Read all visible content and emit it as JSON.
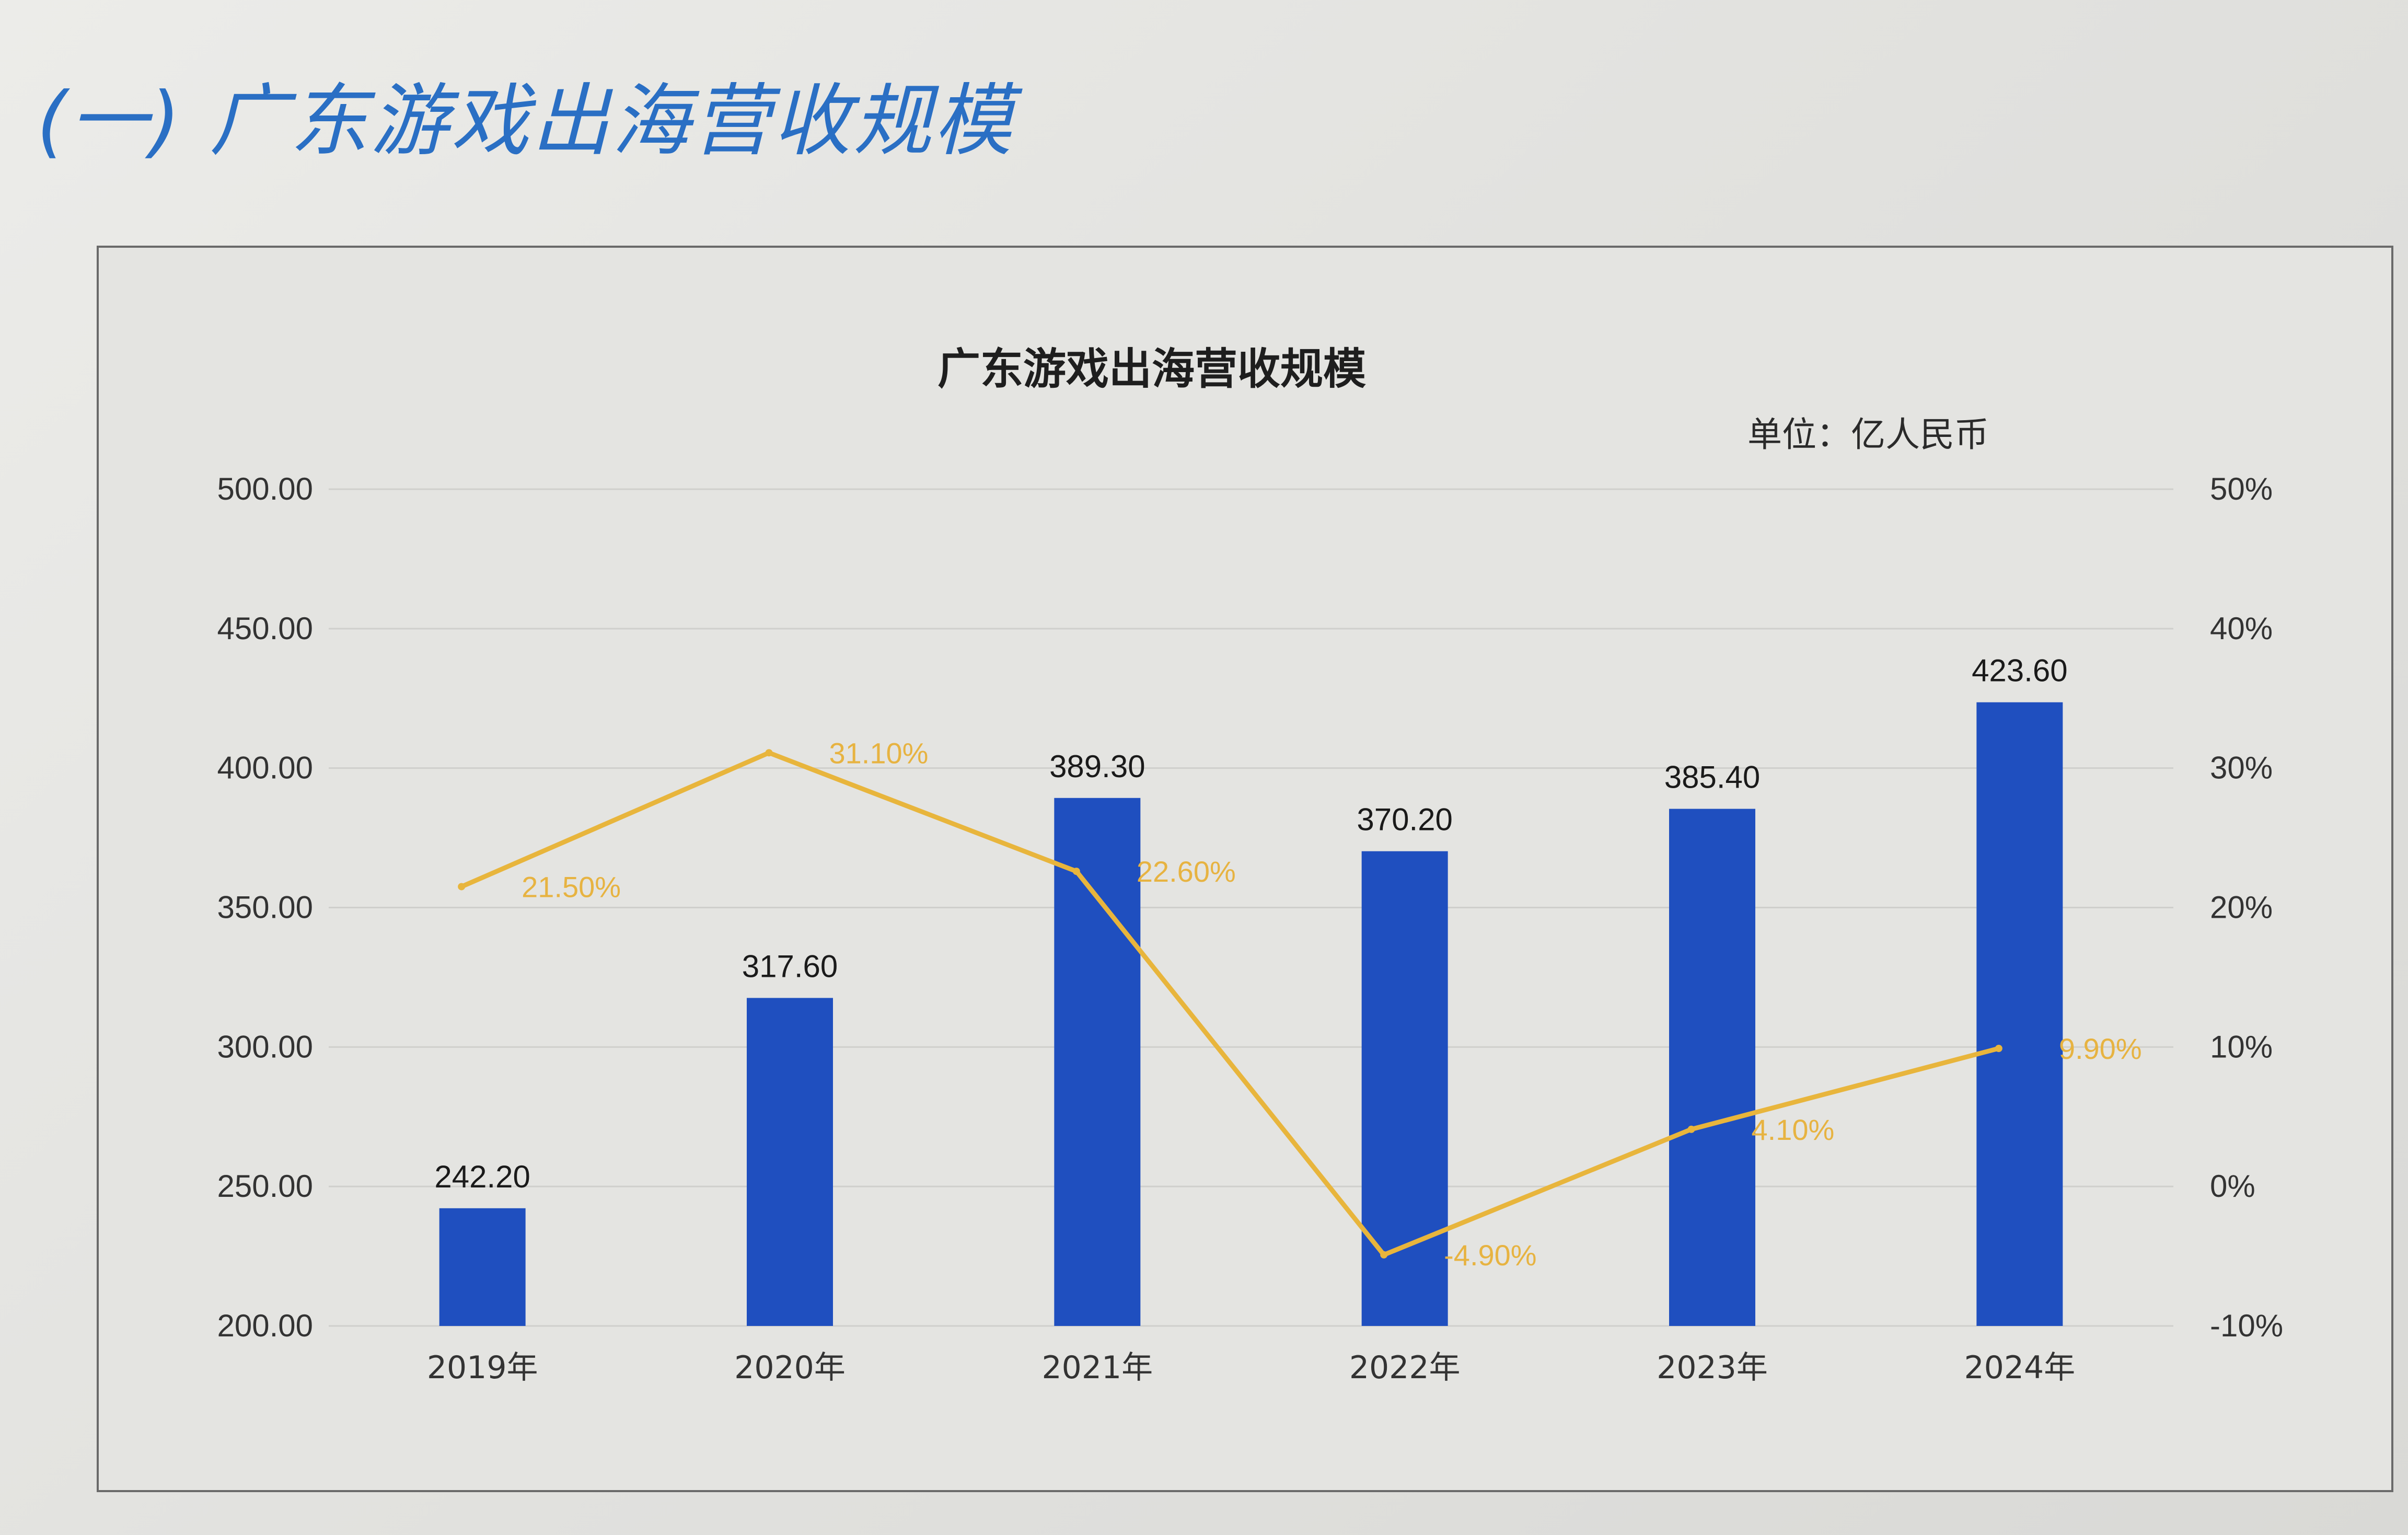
{
  "section_heading": "(一) 广东游戏出海营收规模",
  "unit_label": "单位：亿人民币",
  "colors": {
    "heading": "#2a6fc4",
    "bar": "#1f4fbf",
    "line": "#e8b53c",
    "grid": "#cfcfcc"
  },
  "chart_data": {
    "type": "bar",
    "title": "广东游戏出海营收规模",
    "categories": [
      "2019年",
      "2020年",
      "2021年",
      "2022年",
      "2023年",
      "2024年"
    ],
    "series": [
      {
        "values": [
          242.2,
          317.6,
          389.3,
          370.2,
          385.4,
          423.6
        ],
        "labels": [
          "242.20",
          "317.60",
          "389.30",
          "370.20",
          "385.40",
          "423.60"
        ],
        "axis": "left",
        "render": "bar"
      },
      {
        "values": [
          21.5,
          31.1,
          22.6,
          -4.9,
          4.1,
          9.9
        ],
        "labels": [
          "21.50%",
          "31.10%",
          "22.60%",
          "-4.90%",
          "4.10%",
          "9.90%"
        ],
        "axis": "right",
        "render": "line"
      }
    ],
    "ylim": [
      200,
      500
    ],
    "yticks": [
      "200.00",
      "250.00",
      "300.00",
      "350.00",
      "400.00",
      "450.00",
      "500.00"
    ],
    "y2lim": [
      -10,
      50
    ],
    "y2ticks": [
      "-10%",
      "0%",
      "10%",
      "20%",
      "30%",
      "40%",
      "50%"
    ],
    "grid": true,
    "legend": "none"
  }
}
